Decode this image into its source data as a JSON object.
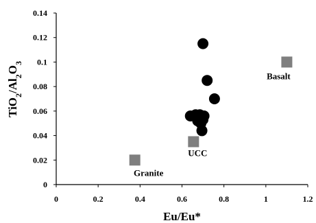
{
  "chart_data": {
    "type": "scatter",
    "xlabel": "Eu/Eu*",
    "ylabel": "TiO2/Al2O3",
    "xlim": [
      0,
      1.2
    ],
    "ylim": [
      0,
      0.14
    ],
    "x_ticks": [
      {
        "value": 0,
        "label": "0"
      },
      {
        "value": 0.2,
        "label": "0.2"
      },
      {
        "value": 0.4,
        "label": "0.4"
      },
      {
        "value": 0.6,
        "label": "0.6"
      },
      {
        "value": 0.8,
        "label": "0.8"
      },
      {
        "value": 1.0,
        "label": "1"
      },
      {
        "value": 1.2,
        "label": "1.2"
      }
    ],
    "y_ticks": [
      {
        "value": 0,
        "label": "0"
      },
      {
        "value": 0.02,
        "label": "0.02"
      },
      {
        "value": 0.04,
        "label": "0.04"
      },
      {
        "value": 0.06,
        "label": "0.06"
      },
      {
        "value": 0.08,
        "label": "0.08"
      },
      {
        "value": 0.1,
        "label": "0.1"
      },
      {
        "value": 0.12,
        "label": "0.12"
      },
      {
        "value": 0.14,
        "label": "0.14"
      }
    ],
    "grid": false,
    "series": [
      {
        "marker": "circle",
        "color": "#000000",
        "points": [
          {
            "x": 0.7,
            "y": 0.115
          },
          {
            "x": 0.72,
            "y": 0.085
          },
          {
            "x": 0.755,
            "y": 0.07
          },
          {
            "x": 0.64,
            "y": 0.056
          },
          {
            "x": 0.665,
            "y": 0.057
          },
          {
            "x": 0.685,
            "y": 0.057
          },
          {
            "x": 0.705,
            "y": 0.056
          },
          {
            "x": 0.675,
            "y": 0.052
          },
          {
            "x": 0.69,
            "y": 0.05
          },
          {
            "x": 0.7,
            "y": 0.053
          },
          {
            "x": 0.695,
            "y": 0.044
          }
        ]
      },
      {
        "marker": "square",
        "color": "#7f7f7f",
        "points": [
          {
            "x": 0.375,
            "y": 0.02,
            "label": "Granite"
          },
          {
            "x": 0.655,
            "y": 0.035,
            "label": "UCC"
          },
          {
            "x": 1.1,
            "y": 0.1,
            "label": "Basalt"
          }
        ]
      }
    ]
  }
}
